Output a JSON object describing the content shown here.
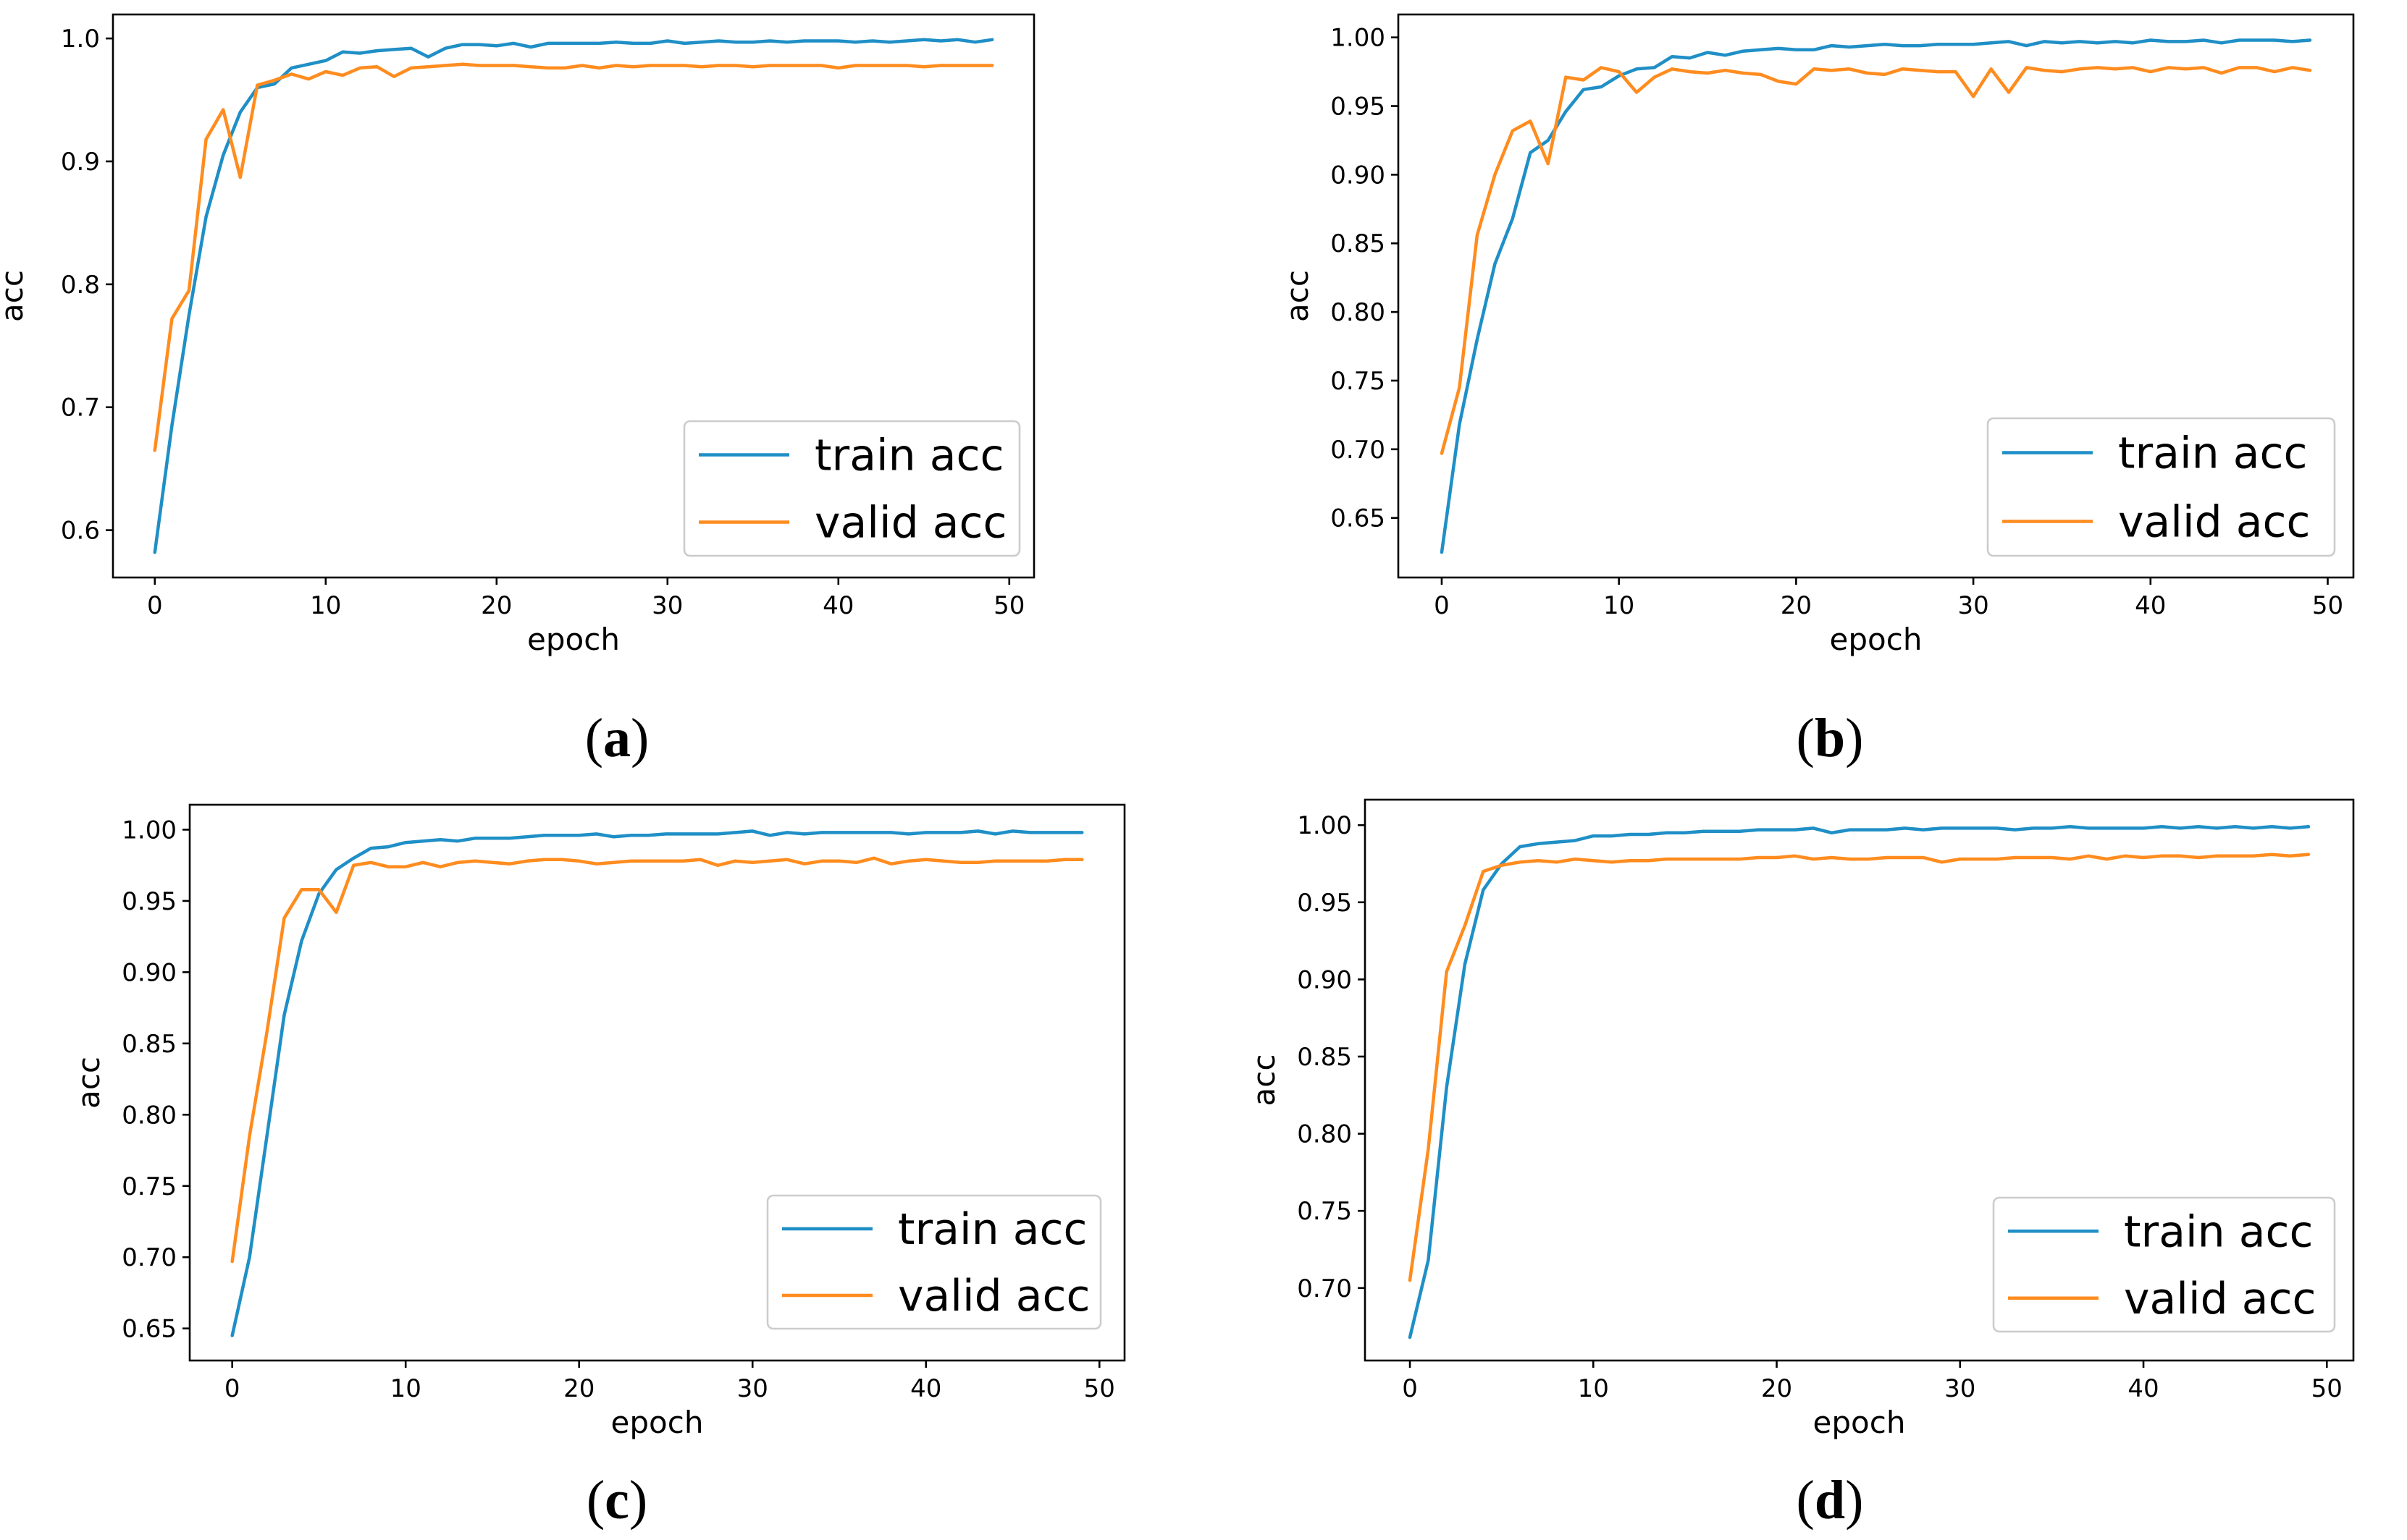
{
  "colors": {
    "train": "#1f8fc6",
    "valid": "#ff8c1f"
  },
  "chart_data": [
    {
      "id": "a",
      "caption": "a",
      "type": "line",
      "xlabel": "epoch",
      "ylabel": "acc",
      "xlim": [
        -2.45,
        51.45
      ],
      "ylim": [
        0.5615,
        1.0195
      ],
      "xticks": [
        0,
        10,
        20,
        30,
        40,
        50
      ],
      "xtick_labels": [
        "0",
        "10",
        "20",
        "30",
        "40",
        "50"
      ],
      "yticks": [
        0.6,
        0.7,
        0.8,
        0.9,
        1.0
      ],
      "ytick_labels": [
        "0.6",
        "0.7",
        "0.8",
        "0.9",
        "1.0"
      ],
      "legend": {
        "placement": "lower-right",
        "entries": [
          "train acc",
          "valid acc"
        ]
      },
      "series": [
        {
          "name": "train acc",
          "color_key": "train",
          "x": [
            0,
            1,
            2,
            3,
            4,
            5,
            6,
            7,
            8,
            9,
            10,
            11,
            12,
            13,
            14,
            15,
            16,
            17,
            18,
            19,
            20,
            21,
            22,
            23,
            24,
            25,
            26,
            27,
            28,
            29,
            30,
            31,
            32,
            33,
            34,
            35,
            36,
            37,
            38,
            39,
            40,
            41,
            42,
            43,
            44,
            45,
            46,
            47,
            48,
            49
          ],
          "values": [
            0.582,
            0.685,
            0.775,
            0.855,
            0.905,
            0.94,
            0.96,
            0.963,
            0.976,
            0.979,
            0.982,
            0.989,
            0.988,
            0.99,
            0.991,
            0.992,
            0.985,
            0.992,
            0.995,
            0.995,
            0.994,
            0.996,
            0.993,
            0.996,
            0.996,
            0.996,
            0.996,
            0.997,
            0.996,
            0.996,
            0.998,
            0.996,
            0.997,
            0.998,
            0.997,
            0.997,
            0.998,
            0.997,
            0.998,
            0.998,
            0.998,
            0.997,
            0.998,
            0.997,
            0.998,
            0.999,
            0.998,
            0.999,
            0.997,
            0.999
          ]
        },
        {
          "name": "valid acc",
          "color_key": "valid",
          "x": [
            0,
            1,
            2,
            3,
            4,
            5,
            6,
            7,
            8,
            9,
            10,
            11,
            12,
            13,
            14,
            15,
            16,
            17,
            18,
            19,
            20,
            21,
            22,
            23,
            24,
            25,
            26,
            27,
            28,
            29,
            30,
            31,
            32,
            33,
            34,
            35,
            36,
            37,
            38,
            39,
            40,
            41,
            42,
            43,
            44,
            45,
            46,
            47,
            48,
            49
          ],
          "values": [
            0.665,
            0.772,
            0.795,
            0.918,
            0.942,
            0.887,
            0.962,
            0.966,
            0.971,
            0.967,
            0.973,
            0.97,
            0.976,
            0.977,
            0.969,
            0.976,
            0.977,
            0.978,
            0.979,
            0.978,
            0.978,
            0.978,
            0.977,
            0.976,
            0.976,
            0.978,
            0.976,
            0.978,
            0.977,
            0.978,
            0.978,
            0.978,
            0.977,
            0.978,
            0.978,
            0.977,
            0.978,
            0.978,
            0.978,
            0.978,
            0.976,
            0.978,
            0.978,
            0.978,
            0.978,
            0.977,
            0.978,
            0.978,
            0.978,
            0.978
          ]
        }
      ]
    },
    {
      "id": "b",
      "caption": "b",
      "type": "line",
      "xlabel": "epoch",
      "ylabel": "acc",
      "xlim": [
        -2.45,
        51.45
      ],
      "ylim": [
        0.6066,
        1.0167
      ],
      "xticks": [
        0,
        10,
        20,
        30,
        40,
        50
      ],
      "xtick_labels": [
        "0",
        "10",
        "20",
        "30",
        "40",
        "50"
      ],
      "yticks": [
        0.65,
        0.7,
        0.75,
        0.8,
        0.85,
        0.9,
        0.95,
        1.0
      ],
      "ytick_labels": [
        "0.65",
        "0.70",
        "0.75",
        "0.80",
        "0.85",
        "0.90",
        "0.95",
        "1.00"
      ],
      "legend": {
        "placement": "lower-right",
        "entries": [
          "train acc",
          "valid acc"
        ]
      },
      "series": [
        {
          "name": "train acc",
          "color_key": "train",
          "x": [
            0,
            1,
            2,
            3,
            4,
            5,
            6,
            7,
            8,
            9,
            10,
            11,
            12,
            13,
            14,
            15,
            16,
            17,
            18,
            19,
            20,
            21,
            22,
            23,
            24,
            25,
            26,
            27,
            28,
            29,
            30,
            31,
            32,
            33,
            34,
            35,
            36,
            37,
            38,
            39,
            40,
            41,
            42,
            43,
            44,
            45,
            46,
            47,
            48,
            49
          ],
          "values": [
            0.625,
            0.718,
            0.78,
            0.835,
            0.868,
            0.916,
            0.925,
            0.946,
            0.962,
            0.964,
            0.972,
            0.977,
            0.978,
            0.986,
            0.985,
            0.989,
            0.987,
            0.99,
            0.991,
            0.992,
            0.991,
            0.991,
            0.994,
            0.993,
            0.994,
            0.995,
            0.994,
            0.994,
            0.995,
            0.995,
            0.995,
            0.996,
            0.997,
            0.994,
            0.997,
            0.996,
            0.997,
            0.996,
            0.997,
            0.996,
            0.998,
            0.997,
            0.997,
            0.998,
            0.996,
            0.998,
            0.998,
            0.998,
            0.997,
            0.998
          ]
        },
        {
          "name": "valid acc",
          "color_key": "valid",
          "x": [
            0,
            1,
            2,
            3,
            4,
            5,
            6,
            7,
            8,
            9,
            10,
            11,
            12,
            13,
            14,
            15,
            16,
            17,
            18,
            19,
            20,
            21,
            22,
            23,
            24,
            25,
            26,
            27,
            28,
            29,
            30,
            31,
            32,
            33,
            34,
            35,
            36,
            37,
            38,
            39,
            40,
            41,
            42,
            43,
            44,
            45,
            46,
            47,
            48,
            49
          ],
          "values": [
            0.697,
            0.745,
            0.856,
            0.9,
            0.932,
            0.939,
            0.908,
            0.971,
            0.969,
            0.978,
            0.975,
            0.96,
            0.971,
            0.977,
            0.975,
            0.974,
            0.976,
            0.974,
            0.973,
            0.968,
            0.966,
            0.977,
            0.976,
            0.977,
            0.974,
            0.973,
            0.977,
            0.976,
            0.975,
            0.975,
            0.957,
            0.977,
            0.96,
            0.978,
            0.976,
            0.975,
            0.977,
            0.978,
            0.977,
            0.978,
            0.975,
            0.978,
            0.977,
            0.978,
            0.974,
            0.978,
            0.978,
            0.975,
            0.978,
            0.976
          ]
        }
      ]
    },
    {
      "id": "c",
      "caption": "c",
      "type": "line",
      "xlabel": "epoch",
      "ylabel": "acc",
      "xlim": [
        -2.45,
        51.45
      ],
      "ylim": [
        0.6275,
        1.0175
      ],
      "xticks": [
        0,
        10,
        20,
        30,
        40,
        50
      ],
      "xtick_labels": [
        "0",
        "10",
        "20",
        "30",
        "40",
        "50"
      ],
      "yticks": [
        0.65,
        0.7,
        0.75,
        0.8,
        0.85,
        0.9,
        0.95,
        1.0
      ],
      "ytick_labels": [
        "0.65",
        "0.70",
        "0.75",
        "0.80",
        "0.85",
        "0.90",
        "0.95",
        "1.00"
      ],
      "legend": {
        "placement": "lower-right",
        "entries": [
          "train acc",
          "valid acc"
        ]
      },
      "series": [
        {
          "name": "train acc",
          "color_key": "train",
          "x": [
            0,
            1,
            2,
            3,
            4,
            5,
            6,
            7,
            8,
            9,
            10,
            11,
            12,
            13,
            14,
            15,
            16,
            17,
            18,
            19,
            20,
            21,
            22,
            23,
            24,
            25,
            26,
            27,
            28,
            29,
            30,
            31,
            32,
            33,
            34,
            35,
            36,
            37,
            38,
            39,
            40,
            41,
            42,
            43,
            44,
            45,
            46,
            47,
            48,
            49
          ],
          "values": [
            0.645,
            0.7,
            0.785,
            0.87,
            0.922,
            0.955,
            0.972,
            0.98,
            0.987,
            0.988,
            0.991,
            0.992,
            0.993,
            0.992,
            0.994,
            0.994,
            0.994,
            0.995,
            0.996,
            0.996,
            0.996,
            0.997,
            0.995,
            0.996,
            0.996,
            0.997,
            0.997,
            0.997,
            0.997,
            0.998,
            0.999,
            0.996,
            0.998,
            0.997,
            0.998,
            0.998,
            0.998,
            0.998,
            0.998,
            0.997,
            0.998,
            0.998,
            0.998,
            0.999,
            0.997,
            0.999,
            0.998,
            0.998,
            0.998,
            0.998
          ]
        },
        {
          "name": "valid acc",
          "color_key": "valid",
          "x": [
            0,
            1,
            2,
            3,
            4,
            5,
            6,
            7,
            8,
            9,
            10,
            11,
            12,
            13,
            14,
            15,
            16,
            17,
            18,
            19,
            20,
            21,
            22,
            23,
            24,
            25,
            26,
            27,
            28,
            29,
            30,
            31,
            32,
            33,
            34,
            35,
            36,
            37,
            38,
            39,
            40,
            41,
            42,
            43,
            44,
            45,
            46,
            47,
            48,
            49
          ],
          "values": [
            0.697,
            0.785,
            0.858,
            0.938,
            0.958,
            0.958,
            0.942,
            0.975,
            0.977,
            0.974,
            0.974,
            0.977,
            0.974,
            0.977,
            0.978,
            0.977,
            0.976,
            0.978,
            0.979,
            0.979,
            0.978,
            0.976,
            0.977,
            0.978,
            0.978,
            0.978,
            0.978,
            0.979,
            0.975,
            0.978,
            0.977,
            0.978,
            0.979,
            0.976,
            0.978,
            0.978,
            0.977,
            0.98,
            0.976,
            0.978,
            0.979,
            0.978,
            0.977,
            0.977,
            0.978,
            0.978,
            0.978,
            0.978,
            0.979,
            0.979
          ]
        }
      ]
    },
    {
      "id": "d",
      "caption": "d",
      "type": "line",
      "xlabel": "epoch",
      "ylabel": "acc",
      "xlim": [
        -2.45,
        51.45
      ],
      "ylim": [
        0.653,
        1.0165
      ],
      "xticks": [
        0,
        10,
        20,
        30,
        40,
        50
      ],
      "xtick_labels": [
        "0",
        "10",
        "20",
        "30",
        "40",
        "50"
      ],
      "yticks": [
        0.7,
        0.75,
        0.8,
        0.85,
        0.9,
        0.95,
        1.0
      ],
      "ytick_labels": [
        "0.70",
        "0.75",
        "0.80",
        "0.85",
        "0.90",
        "0.95",
        "1.00"
      ],
      "legend": {
        "placement": "lower-right",
        "entries": [
          "train acc",
          "valid acc"
        ]
      },
      "series": [
        {
          "name": "train acc",
          "color_key": "train",
          "x": [
            0,
            1,
            2,
            3,
            4,
            5,
            6,
            7,
            8,
            9,
            10,
            11,
            12,
            13,
            14,
            15,
            16,
            17,
            18,
            19,
            20,
            21,
            22,
            23,
            24,
            25,
            26,
            27,
            28,
            29,
            30,
            31,
            32,
            33,
            34,
            35,
            36,
            37,
            38,
            39,
            40,
            41,
            42,
            43,
            44,
            45,
            46,
            47,
            48,
            49
          ],
          "values": [
            0.668,
            0.718,
            0.83,
            0.91,
            0.958,
            0.975,
            0.986,
            0.988,
            0.989,
            0.99,
            0.993,
            0.993,
            0.994,
            0.994,
            0.995,
            0.995,
            0.996,
            0.996,
            0.996,
            0.997,
            0.997,
            0.997,
            0.998,
            0.995,
            0.997,
            0.997,
            0.997,
            0.998,
            0.997,
            0.998,
            0.998,
            0.998,
            0.998,
            0.997,
            0.998,
            0.998,
            0.999,
            0.998,
            0.998,
            0.998,
            0.998,
            0.999,
            0.998,
            0.999,
            0.998,
            0.999,
            0.998,
            0.999,
            0.998,
            0.999
          ]
        },
        {
          "name": "valid acc",
          "color_key": "valid",
          "x": [
            0,
            1,
            2,
            3,
            4,
            5,
            6,
            7,
            8,
            9,
            10,
            11,
            12,
            13,
            14,
            15,
            16,
            17,
            18,
            19,
            20,
            21,
            22,
            23,
            24,
            25,
            26,
            27,
            28,
            29,
            30,
            31,
            32,
            33,
            34,
            35,
            36,
            37,
            38,
            39,
            40,
            41,
            42,
            43,
            44,
            45,
            46,
            47,
            48,
            49
          ],
          "values": [
            0.705,
            0.79,
            0.905,
            0.935,
            0.97,
            0.974,
            0.976,
            0.977,
            0.976,
            0.978,
            0.977,
            0.976,
            0.977,
            0.977,
            0.978,
            0.978,
            0.978,
            0.978,
            0.978,
            0.979,
            0.979,
            0.98,
            0.978,
            0.979,
            0.978,
            0.978,
            0.979,
            0.979,
            0.979,
            0.976,
            0.978,
            0.978,
            0.978,
            0.979,
            0.979,
            0.979,
            0.978,
            0.98,
            0.978,
            0.98,
            0.979,
            0.98,
            0.98,
            0.979,
            0.98,
            0.98,
            0.98,
            0.981,
            0.98,
            0.981
          ]
        }
      ]
    }
  ]
}
